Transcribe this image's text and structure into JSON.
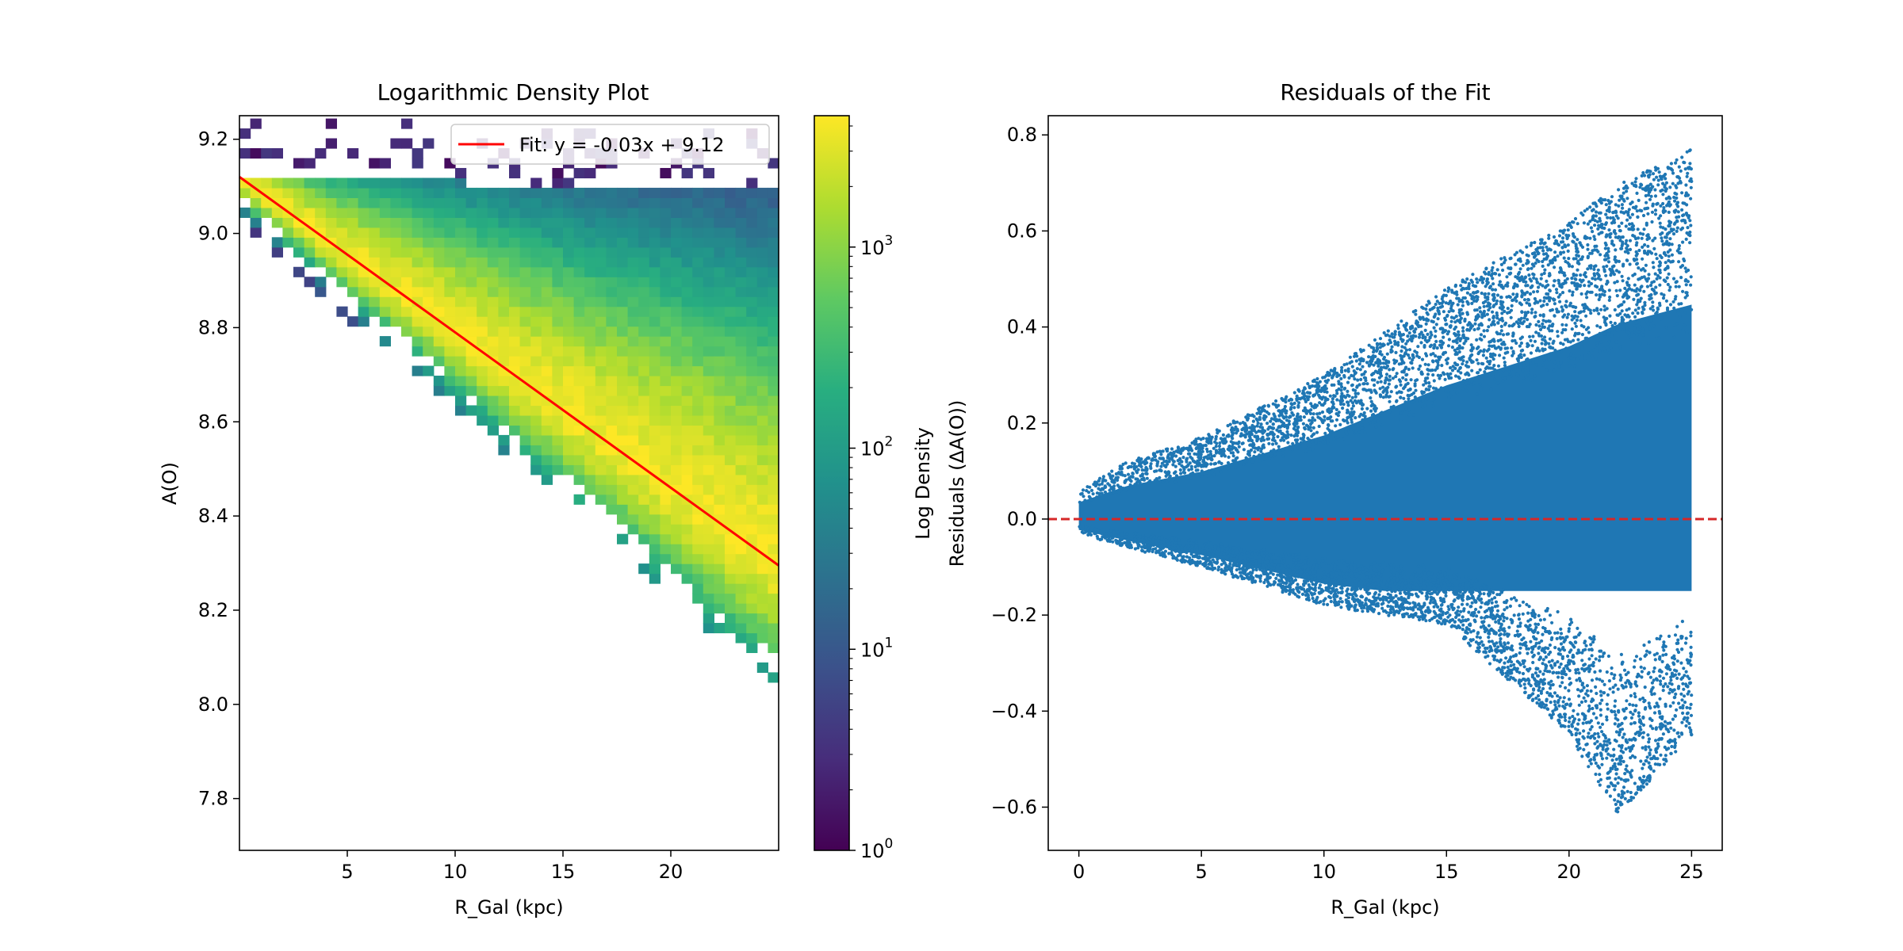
{
  "chart_data": [
    {
      "type": "heatmap",
      "title": "Logarithmic Density Plot",
      "xlabel": "R_Gal (kpc)",
      "ylabel": "A(O)",
      "xlim": [
        0,
        25
      ],
      "ylim": [
        7.69,
        9.25
      ],
      "xticks": [
        5,
        10,
        15,
        20
      ],
      "yticks": [
        7.8,
        8.0,
        8.2,
        8.4,
        8.6,
        8.8,
        9.0,
        9.2
      ],
      "xtick_labels": [
        "5",
        "10",
        "15",
        "20"
      ],
      "ytick_labels": [
        "7.8",
        "8.0",
        "8.2",
        "8.4",
        "8.6",
        "8.8",
        "9.0",
        "9.2"
      ],
      "colormap": "viridis",
      "colorbar": {
        "label": "Log Density",
        "scale": "log",
        "range": [
          1,
          4500
        ],
        "ticks": [
          1,
          10,
          100,
          1000
        ],
        "tick_labels": [
          {
            "base": "10",
            "exp": "0"
          },
          {
            "base": "10",
            "exp": "1"
          },
          {
            "base": "10",
            "exp": "2"
          },
          {
            "base": "10",
            "exp": "3"
          }
        ]
      },
      "density_model": {
        "fit_slope": -0.033,
        "fit_intercept": 9.12,
        "upper_envelope": 9.12,
        "peak_count": 4000
      },
      "fit_line": {
        "slope": -0.033,
        "intercept": 9.12,
        "color": "#ff0000"
      },
      "legend": {
        "location": "upper-right",
        "entries": [
          "Fit: y = -0.03x + 9.12"
        ]
      }
    },
    {
      "type": "scatter",
      "title": "Residuals of the Fit",
      "xlabel": "R_Gal (kpc)",
      "ylabel": "Residuals (ΔA(O))",
      "xlim": [
        -1.25,
        26.25
      ],
      "ylim": [
        -0.69,
        0.84
      ],
      "xticks": [
        0,
        5,
        10,
        15,
        20,
        25
      ],
      "yticks": [
        -0.6,
        -0.4,
        -0.2,
        0.0,
        0.2,
        0.4,
        0.6,
        0.8
      ],
      "xtick_labels": [
        "0",
        "5",
        "10",
        "15",
        "20",
        "25"
      ],
      "ytick_labels": [
        "−0.6",
        "−0.4",
        "−0.2",
        "0.0",
        "0.2",
        "0.4",
        "0.6",
        "0.8"
      ],
      "marker_color": "#1f77b4",
      "envelope": {
        "x": [
          0,
          2,
          5,
          10,
          15,
          20,
          22,
          25
        ],
        "upper": [
          0.06,
          0.12,
          0.17,
          0.3,
          0.48,
          0.62,
          0.7,
          0.77
        ],
        "lower": [
          -0.03,
          -0.06,
          -0.1,
          -0.18,
          -0.22,
          -0.45,
          -0.62,
          -0.45
        ]
      },
      "reference_line": {
        "y": 0.0,
        "color": "#d62728",
        "style": "dashed"
      }
    }
  ]
}
